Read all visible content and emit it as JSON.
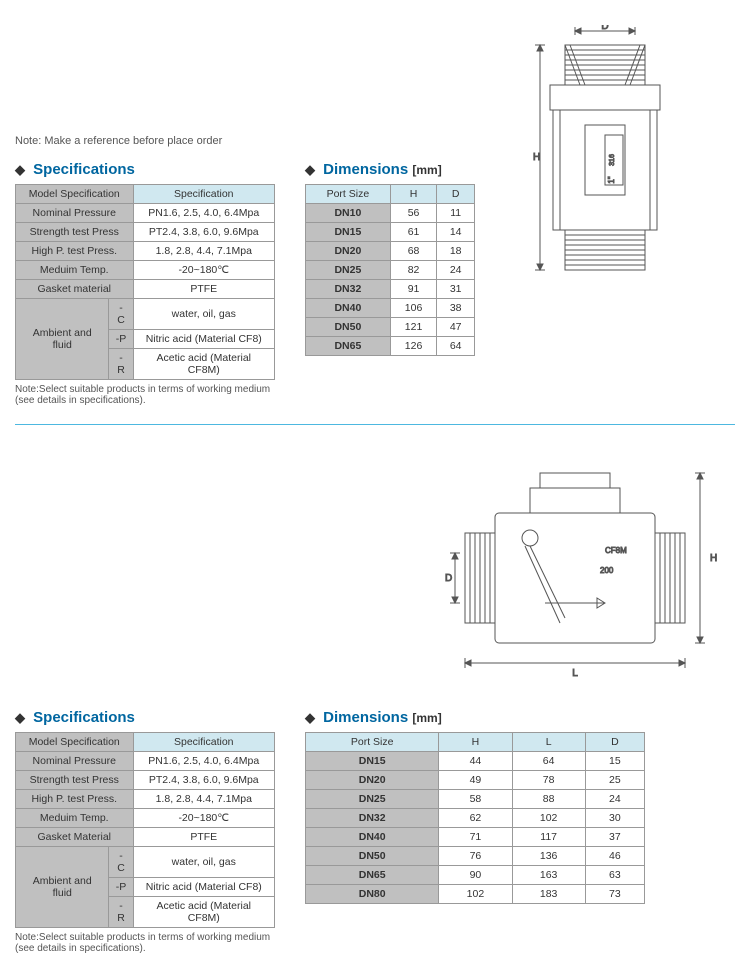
{
  "top_note": "Note: Make a reference  before place order",
  "spec_header_model": "Model Specification",
  "spec_header_spec": "Specification",
  "dim_header_port": "Port Size",
  "footnote": "Note:Select suitable products in terms of working medium (see details in specifications).",
  "product1": {
    "spec_title": "Specifications",
    "dim_title": "Dimensions",
    "mm": "[mm]",
    "spec_rows": [
      {
        "label": "Nominal Pressure",
        "value": "PN1.6, 2.5, 4.0, 6.4Mpa"
      },
      {
        "label": "Strength test Press",
        "value": "PT2.4, 3.8, 6.0, 9.6Mpa"
      },
      {
        "label": "High P. test Press.",
        "value": "1.8, 2.8, 4.4, 7.1Mpa"
      },
      {
        "label": "Meduim Temp.",
        "value": "-20~180℃"
      },
      {
        "label": "Gasket material",
        "value": "PTFE"
      }
    ],
    "ambient_label": "Ambient and fluid",
    "ambient_rows": [
      {
        "code": "-C",
        "value": "water, oil, gas"
      },
      {
        "code": "-P",
        "value": "Nitric acid (Material CF8)"
      },
      {
        "code": "-R",
        "value": "Acetic acid (Material CF8M)"
      }
    ],
    "dim_columns": [
      "H",
      "D"
    ],
    "dim_rows": [
      {
        "port": "DN10",
        "vals": [
          "56",
          "11"
        ]
      },
      {
        "port": "DN15",
        "vals": [
          "61",
          "14"
        ]
      },
      {
        "port": "DN20",
        "vals": [
          "68",
          "18"
        ]
      },
      {
        "port": "DN25",
        "vals": [
          "82",
          "24"
        ]
      },
      {
        "port": "DN32",
        "vals": [
          "91",
          "31"
        ]
      },
      {
        "port": "DN40",
        "vals": [
          "106",
          "38"
        ]
      },
      {
        "port": "DN50",
        "vals": [
          "121",
          "47"
        ]
      },
      {
        "port": "DN65",
        "vals": [
          "126",
          "64"
        ]
      }
    ],
    "diagram_labels": {
      "H": "H",
      "D": "D",
      "mark1": "1\"",
      "mark2": "316",
      "mark3": "CF8M"
    }
  },
  "product2": {
    "spec_title": "Specifications",
    "dim_title": "Dimensions",
    "mm": "[mm]",
    "spec_rows": [
      {
        "label": "Nominal Pressure",
        "value": "PN1.6, 2.5, 4.0, 6.4Mpa"
      },
      {
        "label": "Strength test Press",
        "value": "PT2.4, 3.8, 6.0, 9.6Mpa"
      },
      {
        "label": "High P. test Press.",
        "value": "1.8, 2.8, 4.4, 7.1Mpa"
      },
      {
        "label": "Meduim Temp.",
        "value": "-20~180℃"
      },
      {
        "label": "Gasket Material",
        "value": "PTFE"
      }
    ],
    "ambient_label": "Ambient and fluid",
    "ambient_rows": [
      {
        "code": "-C",
        "value": "water, oil, gas"
      },
      {
        "code": "-P",
        "value": "Nitric acid (Material CF8)"
      },
      {
        "code": "-R",
        "value": "Acetic acid (Material CF8M)"
      }
    ],
    "dim_columns": [
      "H",
      "L",
      "D"
    ],
    "dim_rows": [
      {
        "port": "DN15",
        "vals": [
          "44",
          "64",
          "15"
        ]
      },
      {
        "port": "DN20",
        "vals": [
          "49",
          "78",
          "25"
        ]
      },
      {
        "port": "DN25",
        "vals": [
          "58",
          "88",
          "24"
        ]
      },
      {
        "port": "DN32",
        "vals": [
          "62",
          "102",
          "30"
        ]
      },
      {
        "port": "DN40",
        "vals": [
          "71",
          "117",
          "37"
        ]
      },
      {
        "port": "DN50",
        "vals": [
          "76",
          "136",
          "46"
        ]
      },
      {
        "port": "DN65",
        "vals": [
          "90",
          "163",
          "63"
        ]
      },
      {
        "port": "DN80",
        "vals": [
          "102",
          "183",
          "73"
        ]
      }
    ],
    "diagram_labels": {
      "H": "H",
      "L": "L",
      "D": "D",
      "mark1": "CF8M",
      "mark2": "200"
    }
  }
}
